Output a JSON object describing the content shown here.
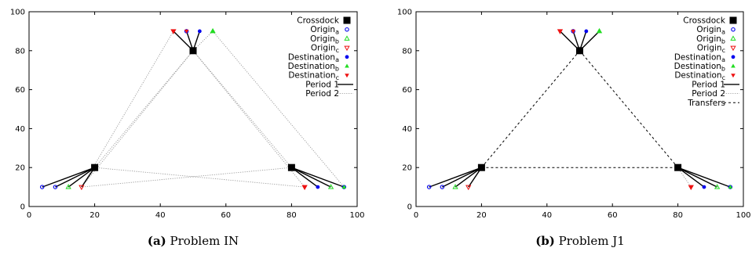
{
  "chart_data": [
    {
      "type": "scatter",
      "caption_label": "(a)",
      "caption_text": "Problem IN",
      "xlim": [
        0,
        100
      ],
      "ylim": [
        0,
        100
      ],
      "xticks": [
        "0",
        "20",
        "40",
        "60",
        "80",
        "100"
      ],
      "yticks": [
        "0",
        "20",
        "40",
        "60",
        "80",
        "100"
      ],
      "legend_position": "top-right",
      "legend": [
        {
          "key": "crossdock",
          "base": "Crossdock",
          "sub": ""
        },
        {
          "key": "origin_a",
          "base": "Origin",
          "sub": "a"
        },
        {
          "key": "origin_b",
          "base": "Origin",
          "sub": "b"
        },
        {
          "key": "origin_c",
          "base": "Origin",
          "sub": "c"
        },
        {
          "key": "dest_a",
          "base": "Destination",
          "sub": "a"
        },
        {
          "key": "dest_b",
          "base": "Destination",
          "sub": "b"
        },
        {
          "key": "dest_c",
          "base": "Destination",
          "sub": "c"
        },
        {
          "key": "period1",
          "base": "Period 1",
          "sub": ""
        },
        {
          "key": "period2",
          "base": "Period 2",
          "sub": ""
        }
      ],
      "crossdocks": [
        [
          20,
          20
        ],
        [
          50,
          80
        ],
        [
          80,
          20
        ]
      ],
      "origin_a": [
        [
          4,
          10
        ],
        [
          8,
          10
        ],
        [
          48,
          90
        ],
        [
          96,
          10
        ]
      ],
      "origin_b": [
        [
          12,
          10
        ],
        [
          56,
          90
        ],
        [
          92,
          10
        ]
      ],
      "origin_c": [
        [
          16,
          10
        ],
        [
          44,
          90
        ],
        [
          84,
          10
        ]
      ],
      "dest_a": [
        [
          52,
          90
        ],
        [
          88,
          10
        ]
      ],
      "dest_b": [
        [
          56,
          90
        ],
        [
          96,
          10
        ]
      ],
      "dest_c": [
        [
          44,
          90
        ],
        [
          48,
          90
        ],
        [
          84,
          10
        ]
      ],
      "period1_lines": [
        [
          [
            20,
            20
          ],
          [
            4,
            10
          ]
        ],
        [
          [
            20,
            20
          ],
          [
            8,
            10
          ]
        ],
        [
          [
            20,
            20
          ],
          [
            12,
            10
          ]
        ],
        [
          [
            20,
            20
          ],
          [
            16,
            10
          ]
        ],
        [
          [
            50,
            80
          ],
          [
            44,
            90
          ]
        ],
        [
          [
            50,
            80
          ],
          [
            48,
            90
          ]
        ],
        [
          [
            50,
            80
          ],
          [
            52,
            90
          ]
        ],
        [
          [
            80,
            20
          ],
          [
            88,
            10
          ]
        ],
        [
          [
            80,
            20
          ],
          [
            92,
            10
          ]
        ],
        [
          [
            80,
            20
          ],
          [
            96,
            10
          ]
        ]
      ],
      "period2_lines": [
        [
          [
            50,
            80
          ],
          [
            56,
            90
          ]
        ],
        [
          [
            50,
            80
          ],
          [
            84,
            10
          ]
        ],
        [
          [
            50,
            80
          ],
          [
            16,
            10
          ]
        ],
        [
          [
            20,
            20
          ],
          [
            50,
            80
          ]
        ],
        [
          [
            20,
            20
          ],
          [
            84,
            10
          ]
        ],
        [
          [
            80,
            20
          ],
          [
            16,
            10
          ]
        ],
        [
          [
            80,
            20
          ],
          [
            50,
            80
          ]
        ],
        [
          [
            44,
            90
          ],
          [
            16,
            10
          ]
        ],
        [
          [
            56,
            90
          ],
          [
            96,
            10
          ]
        ],
        [
          [
            12,
            10
          ],
          [
            20,
            20
          ]
        ]
      ],
      "transfer_lines": []
    },
    {
      "type": "scatter",
      "caption_label": "(b)",
      "caption_text": "Problem J1",
      "xlim": [
        0,
        100
      ],
      "ylim": [
        0,
        100
      ],
      "xticks": [
        "0",
        "20",
        "40",
        "60",
        "80",
        "100"
      ],
      "yticks": [
        "0",
        "20",
        "40",
        "60",
        "80",
        "100"
      ],
      "legend_position": "top-right",
      "legend": [
        {
          "key": "crossdock",
          "base": "Crossdock",
          "sub": ""
        },
        {
          "key": "origin_a",
          "base": "Origin",
          "sub": "a"
        },
        {
          "key": "origin_b",
          "base": "Origin",
          "sub": "b"
        },
        {
          "key": "origin_c",
          "base": "Origin",
          "sub": "c"
        },
        {
          "key": "dest_a",
          "base": "Destination",
          "sub": "a"
        },
        {
          "key": "dest_b",
          "base": "Destination",
          "sub": "b"
        },
        {
          "key": "dest_c",
          "base": "Destination",
          "sub": "c"
        },
        {
          "key": "period1",
          "base": "Period 1",
          "sub": ""
        },
        {
          "key": "period2",
          "base": "Period 2",
          "sub": ""
        },
        {
          "key": "transfers",
          "base": "Transfers",
          "sub": ""
        }
      ],
      "crossdocks": [
        [
          20,
          20
        ],
        [
          50,
          80
        ],
        [
          80,
          20
        ]
      ],
      "origin_a": [
        [
          4,
          10
        ],
        [
          8,
          10
        ],
        [
          48,
          90
        ],
        [
          96,
          10
        ]
      ],
      "origin_b": [
        [
          12,
          10
        ],
        [
          56,
          90
        ],
        [
          92,
          10
        ]
      ],
      "origin_c": [
        [
          16,
          10
        ],
        [
          44,
          90
        ],
        [
          84,
          10
        ]
      ],
      "dest_a": [
        [
          52,
          90
        ],
        [
          88,
          10
        ]
      ],
      "dest_b": [
        [
          56,
          90
        ],
        [
          96,
          10
        ]
      ],
      "dest_c": [
        [
          44,
          90
        ],
        [
          48,
          90
        ],
        [
          84,
          10
        ]
      ],
      "period1_lines": [
        [
          [
            20,
            20
          ],
          [
            4,
            10
          ]
        ],
        [
          [
            20,
            20
          ],
          [
            8,
            10
          ]
        ],
        [
          [
            20,
            20
          ],
          [
            12,
            10
          ]
        ],
        [
          [
            20,
            20
          ],
          [
            16,
            10
          ]
        ],
        [
          [
            50,
            80
          ],
          [
            44,
            90
          ]
        ],
        [
          [
            50,
            80
          ],
          [
            48,
            90
          ]
        ],
        [
          [
            50,
            80
          ],
          [
            52,
            90
          ]
        ],
        [
          [
            50,
            80
          ],
          [
            56,
            90
          ]
        ],
        [
          [
            80,
            20
          ],
          [
            88,
            10
          ]
        ],
        [
          [
            80,
            20
          ],
          [
            92,
            10
          ]
        ],
        [
          [
            80,
            20
          ],
          [
            96,
            10
          ]
        ]
      ],
      "period2_lines": [
        [
          [
            50,
            80
          ],
          [
            44,
            90
          ]
        ],
        [
          [
            50,
            80
          ],
          [
            48,
            90
          ]
        ],
        [
          [
            50,
            80
          ],
          [
            56,
            90
          ]
        ],
        [
          [
            20,
            20
          ],
          [
            12,
            10
          ]
        ],
        [
          [
            20,
            20
          ],
          [
            16,
            10
          ]
        ],
        [
          [
            80,
            20
          ],
          [
            84,
            10
          ]
        ],
        [
          [
            80,
            20
          ],
          [
            92,
            10
          ]
        ]
      ],
      "transfer_lines": [
        [
          [
            20,
            20
          ],
          [
            50,
            80
          ]
        ],
        [
          [
            50,
            80
          ],
          [
            80,
            20
          ]
        ],
        [
          [
            20,
            20
          ],
          [
            80,
            20
          ]
        ]
      ]
    }
  ],
  "colors": {
    "crossdock": "#000000",
    "a": "#0000ee",
    "b": "#22dd22",
    "c": "#ee1111",
    "period1": "#000000",
    "period2": "#999999",
    "transfers": "#000000"
  }
}
